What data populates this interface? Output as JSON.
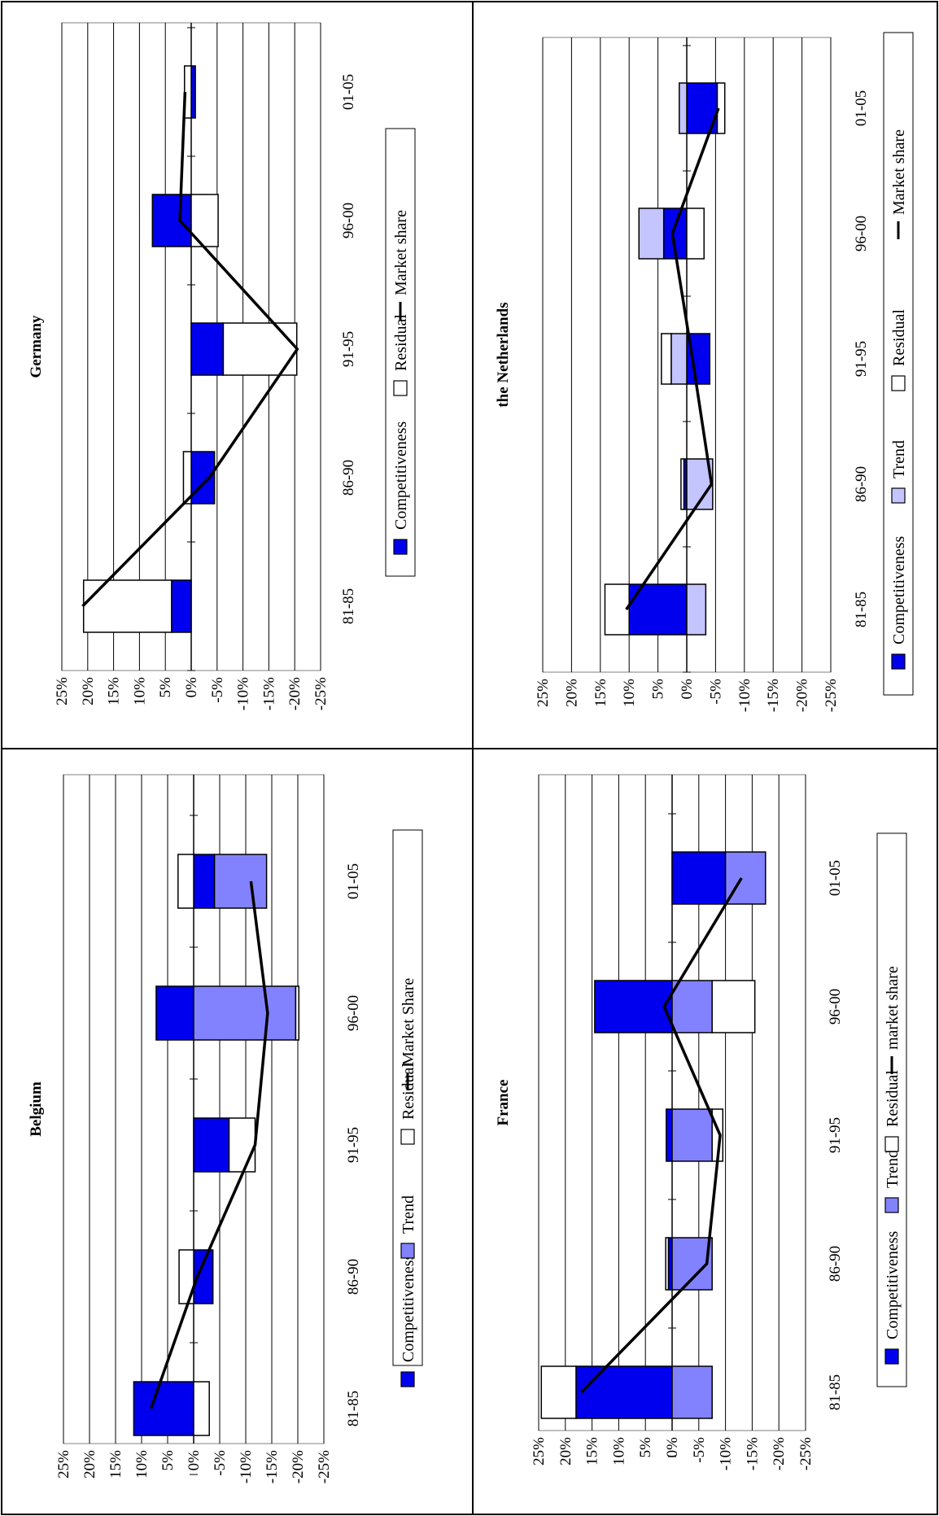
{
  "colors": {
    "competitiveness": "#0000ee",
    "trend": "#8282ff",
    "trend_light": "#c4c4ff",
    "residual": "#ffffff",
    "line": "#000000",
    "grid": "#000000"
  },
  "chart_data": [
    {
      "type": "bar",
      "stacked": true,
      "orientation": "rotated-90",
      "title": "Belgium",
      "categories": [
        "81-85",
        "86-90",
        "91-95",
        "96-00",
        "01-05"
      ],
      "ylim": [
        -25,
        25
      ],
      "yticks": [
        "25%",
        "20%",
        "15%",
        "10%",
        "5%",
        "0%",
        "-5%",
        "-10%",
        "-15%",
        "-20%",
        "-25%"
      ],
      "grid": true,
      "legend": [
        "Competitiveness",
        "Trend",
        "Residual",
        "Market Share"
      ],
      "series": [
        {
          "name": "Competitiveness",
          "kind": "bar",
          "color": "#0000ee",
          "values": [
            11.5,
            -3.7,
            -6.8,
            7.2,
            -4
          ]
        },
        {
          "name": "Trend",
          "kind": "bar",
          "color": "#8282ff",
          "values": [
            0,
            0,
            0,
            -19.6,
            -10
          ]
        },
        {
          "name": "Residual",
          "kind": "bar",
          "color": "#ffffff",
          "values": [
            -3,
            2.8,
            -5,
            -0.6,
            3
          ]
        },
        {
          "name": "Market Share",
          "kind": "line",
          "values": [
            8.2,
            -0.7,
            -11.8,
            -14.2,
            -11
          ]
        }
      ]
    },
    {
      "type": "bar",
      "stacked": true,
      "orientation": "rotated-90",
      "title": "Germany",
      "categories": [
        "81-85",
        "86-90",
        "91-95",
        "96-00",
        "01-05"
      ],
      "ylim": [
        -25,
        25
      ],
      "yticks": [
        "25%",
        "20%",
        "15%",
        "10%",
        "5%",
        "0%",
        "-5%",
        "-10%",
        "-15%",
        "-20%",
        "-25%"
      ],
      "grid": true,
      "legend": [
        "Competitiveness",
        "Residual",
        "Market share"
      ],
      "series": [
        {
          "name": "Competitiveness",
          "kind": "bar",
          "color": "#0000ee",
          "values": [
            3.8,
            -4.5,
            -6.2,
            7.5,
            -0.8
          ]
        },
        {
          "name": "Residual",
          "kind": "bar",
          "color": "#ffffff",
          "values": [
            17,
            1.5,
            -14.2,
            -5.2,
            1.3
          ]
        },
        {
          "name": "Market share",
          "kind": "line",
          "values": [
            21,
            -3.5,
            -20.5,
            2.2,
            1.2
          ]
        }
      ]
    },
    {
      "type": "bar",
      "stacked": true,
      "orientation": "rotated-90",
      "title": "France",
      "categories": [
        "81-85",
        "86-90",
        "91-95",
        "96-00",
        "01-05"
      ],
      "ylim": [
        -25,
        25
      ],
      "yticks": [
        "25%",
        "20%",
        "15%",
        "10%",
        "5%",
        "0%",
        "-5%",
        "-10%",
        "-15%",
        "-20%",
        "-25%"
      ],
      "grid": true,
      "legend": [
        "Competitiveness",
        "Trend",
        "Residual",
        "market share"
      ],
      "series": [
        {
          "name": "Competitiveness",
          "kind": "bar",
          "color": "#0000ee",
          "values": [
            18,
            0.7,
            1.1,
            14.5,
            -10
          ]
        },
        {
          "name": "Trend",
          "kind": "bar",
          "color": "#8282ff",
          "values": [
            -7.5,
            -7.5,
            -7.5,
            -7.5,
            -7.5
          ]
        },
        {
          "name": "Residual",
          "kind": "bar",
          "color": "#ffffff",
          "values": [
            6.5,
            0.5,
            -2,
            -8,
            0
          ]
        },
        {
          "name": "market share",
          "kind": "line",
          "values": [
            17,
            -6.5,
            -9,
            1.5,
            -13
          ]
        }
      ]
    },
    {
      "type": "bar",
      "stacked": true,
      "orientation": "rotated-90",
      "title": "the Netherlands",
      "categories": [
        "81-85",
        "86-90",
        "91-95",
        "96-00",
        "01-05"
      ],
      "ylim": [
        -25,
        25
      ],
      "yticks": [
        "25%",
        "20%",
        "15%",
        "10%",
        "5%",
        "0%",
        "-5%",
        "-10%",
        "-15%",
        "-20%",
        "-25%"
      ],
      "grid": true,
      "legend": [
        "Competitiveness",
        "Trend",
        "Residual",
        "Market share"
      ],
      "series": [
        {
          "name": "Competitiveness",
          "kind": "bar",
          "color": "#0000ee",
          "values": [
            10,
            0.5,
            -4,
            4,
            -5.3
          ]
        },
        {
          "name": "Trend",
          "kind": "bar",
          "color": "#c4c4ff",
          "values": [
            -3.3,
            -4.5,
            2.7,
            4.3,
            1.3
          ]
        },
        {
          "name": "Residual",
          "kind": "bar",
          "color": "#ffffff",
          "values": [
            4.2,
            0.5,
            1.7,
            -3,
            -1.3
          ]
        },
        {
          "name": "Market share",
          "kind": "line",
          "values": [
            10.5,
            -4.3,
            -1,
            2.5,
            -5.5
          ]
        }
      ]
    }
  ]
}
